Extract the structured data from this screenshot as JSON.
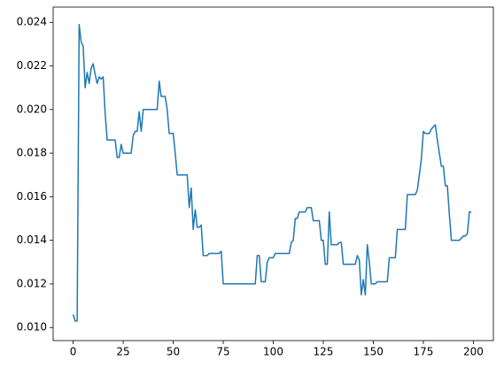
{
  "chart_data": {
    "type": "line",
    "x": [
      0,
      1,
      2,
      3,
      4,
      5,
      6,
      7,
      8,
      9,
      10,
      11,
      12,
      13,
      14,
      15,
      16,
      17,
      18,
      19,
      20,
      21,
      22,
      23,
      24,
      25,
      26,
      27,
      28,
      29,
      30,
      31,
      32,
      33,
      34,
      35,
      36,
      37,
      38,
      39,
      40,
      41,
      42,
      43,
      44,
      45,
      46,
      47,
      48,
      49,
      50,
      51,
      52,
      53,
      54,
      55,
      56,
      57,
      58,
      59,
      60,
      61,
      62,
      63,
      64,
      65,
      66,
      67,
      68,
      69,
      70,
      71,
      72,
      73,
      74,
      75,
      76,
      77,
      78,
      79,
      80,
      81,
      82,
      83,
      84,
      85,
      86,
      87,
      88,
      89,
      90,
      91,
      92,
      93,
      94,
      95,
      96,
      97,
      98,
      99,
      100,
      101,
      102,
      103,
      104,
      105,
      106,
      107,
      108,
      109,
      110,
      111,
      112,
      113,
      114,
      115,
      116,
      117,
      118,
      119,
      120,
      121,
      122,
      123,
      124,
      125,
      126,
      127,
      128,
      129,
      130,
      131,
      132,
      133,
      134,
      135,
      136,
      137,
      138,
      139,
      140,
      141,
      142,
      143,
      144,
      145,
      146,
      147,
      148,
      149,
      150,
      151,
      152,
      153,
      154,
      155,
      156,
      157,
      158,
      159,
      160,
      161,
      162,
      163,
      164,
      165,
      166,
      167,
      168,
      169,
      170,
      171,
      172,
      173,
      174,
      175,
      176,
      177,
      178,
      179,
      180,
      181,
      182,
      183,
      184,
      185,
      186,
      187,
      188,
      189,
      190,
      191,
      192,
      193,
      194,
      195,
      196,
      197,
      198,
      199
    ],
    "series": [
      {
        "color": "#1f77b4",
        "values": [
          0.0106,
          0.0103,
          0.0103,
          0.0239,
          0.0231,
          0.0229,
          0.021,
          0.0217,
          0.0212,
          0.0219,
          0.0221,
          0.0216,
          0.0212,
          0.0215,
          0.0214,
          0.0215,
          0.0198,
          0.0186,
          0.0186,
          0.0186,
          0.0186,
          0.0186,
          0.0178,
          0.0178,
          0.0184,
          0.018,
          0.018,
          0.018,
          0.018,
          0.018,
          0.0188,
          0.019,
          0.019,
          0.0199,
          0.019,
          0.02,
          0.02,
          0.02,
          0.02,
          0.02,
          0.02,
          0.02,
          0.02,
          0.0213,
          0.0206,
          0.0206,
          0.0206,
          0.02,
          0.0189,
          0.0189,
          0.0189,
          0.018,
          0.017,
          0.017,
          0.017,
          0.017,
          0.017,
          0.017,
          0.0155,
          0.0164,
          0.0145,
          0.0154,
          0.0146,
          0.0146,
          0.0147,
          0.0133,
          0.0133,
          0.0133,
          0.0134,
          0.0134,
          0.0134,
          0.0134,
          0.0134,
          0.0134,
          0.0135,
          0.012,
          0.012,
          0.012,
          0.012,
          0.012,
          0.012,
          0.012,
          0.012,
          0.012,
          0.012,
          0.012,
          0.012,
          0.012,
          0.012,
          0.012,
          0.012,
          0.012,
          0.0133,
          0.0133,
          0.0121,
          0.0121,
          0.0121,
          0.013,
          0.0132,
          0.0132,
          0.0132,
          0.0134,
          0.0134,
          0.0134,
          0.0134,
          0.0134,
          0.0134,
          0.0134,
          0.0134,
          0.0139,
          0.014,
          0.015,
          0.015,
          0.0153,
          0.0153,
          0.0153,
          0.0153,
          0.0155,
          0.0155,
          0.0155,
          0.0149,
          0.0149,
          0.0149,
          0.0149,
          0.014,
          0.014,
          0.0129,
          0.0129,
          0.0153,
          0.0138,
          0.0138,
          0.0138,
          0.0138,
          0.0139,
          0.0139,
          0.0129,
          0.0129,
          0.0129,
          0.0129,
          0.0129,
          0.0129,
          0.0129,
          0.0133,
          0.0131,
          0.0115,
          0.0122,
          0.0115,
          0.0138,
          0.013,
          0.012,
          0.012,
          0.012,
          0.0121,
          0.0121,
          0.0121,
          0.0121,
          0.0121,
          0.0121,
          0.0132,
          0.0132,
          0.0132,
          0.0132,
          0.0145,
          0.0145,
          0.0145,
          0.0145,
          0.0145,
          0.0161,
          0.0161,
          0.0161,
          0.0161,
          0.0161,
          0.0163,
          0.017,
          0.0177,
          0.019,
          0.0189,
          0.0189,
          0.0189,
          0.0191,
          0.0192,
          0.0193,
          0.0186,
          0.018,
          0.0174,
          0.0174,
          0.0165,
          0.0165,
          0.0152,
          0.014,
          0.014,
          0.014,
          0.014,
          0.014,
          0.0141,
          0.0142,
          0.0142,
          0.0143,
          0.0153,
          0.0153
        ]
      }
    ],
    "xlim": [
      -10,
      210
    ],
    "xticks": [
      0,
      25,
      50,
      75,
      100,
      125,
      150,
      175,
      200
    ],
    "ylim": [
      0.0094,
      0.0247
    ],
    "yticks": [
      {
        "value": 0.01,
        "label": "0.010"
      },
      {
        "value": 0.012,
        "label": "0.012"
      },
      {
        "value": 0.014,
        "label": "0.014"
      },
      {
        "value": 0.016,
        "label": "0.016"
      },
      {
        "value": 0.018,
        "label": "0.018"
      },
      {
        "value": 0.02,
        "label": "0.020"
      },
      {
        "value": 0.022,
        "label": "0.022"
      },
      {
        "value": 0.024,
        "label": "0.024"
      }
    ],
    "grid": false
  }
}
